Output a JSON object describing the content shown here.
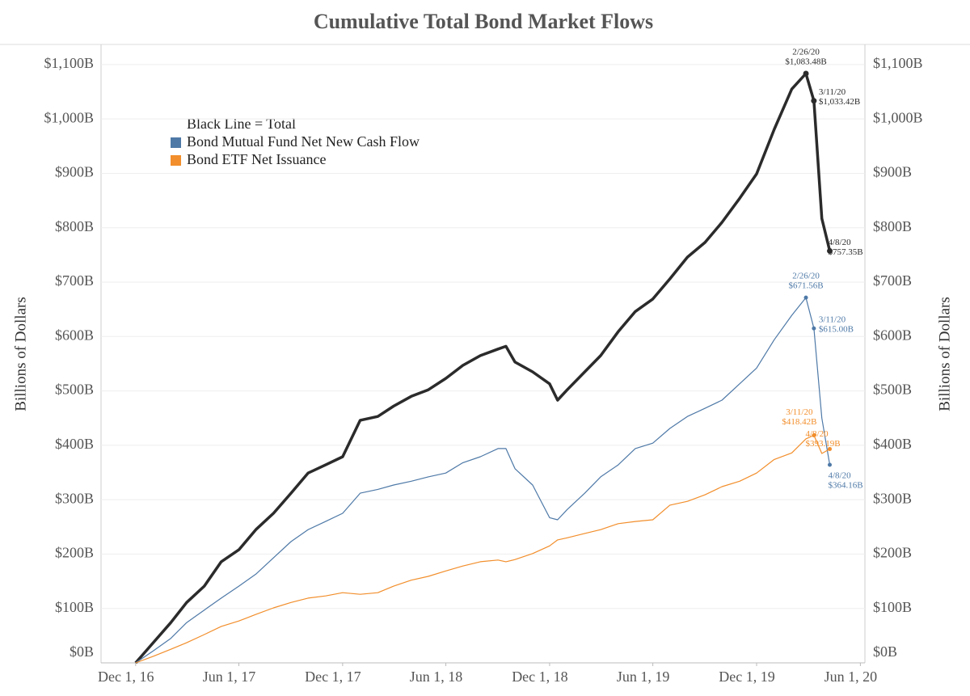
{
  "chart_data": {
    "type": "line",
    "title": "Cumulative Total Bond Market Flows",
    "y_label": "Billions of Dollars",
    "y2_label": "Billions of Dollars",
    "legend_title": "Black Line = Total",
    "legend_position": "upper left",
    "grid": true,
    "xlim": [
      "2016-10-01",
      "2020-06-09"
    ],
    "xticks": [
      {
        "value": "2016-12-01",
        "label": "Dec 1, 16"
      },
      {
        "value": "2017-06-01",
        "label": "Jun 1, 17"
      },
      {
        "value": "2017-12-01",
        "label": "Dec 1, 17"
      },
      {
        "value": "2018-06-01",
        "label": "Jun 1, 18"
      },
      {
        "value": "2018-12-01",
        "label": "Dec 1, 18"
      },
      {
        "value": "2019-06-01",
        "label": "Jun 1, 19"
      },
      {
        "value": "2019-12-01",
        "label": "Dec 1, 19"
      },
      {
        "value": "2020-06-01",
        "label": "Jun 1, 20"
      }
    ],
    "ylim": [
      0,
      1137
    ],
    "yticks": [
      {
        "value": 0,
        "label": "$0B"
      },
      {
        "value": 100,
        "label": "$100B"
      },
      {
        "value": 200,
        "label": "$200B"
      },
      {
        "value": 300,
        "label": "$300B"
      },
      {
        "value": 400,
        "label": "$400B"
      },
      {
        "value": 500,
        "label": "$500B"
      },
      {
        "value": 600,
        "label": "$600B"
      },
      {
        "value": 700,
        "label": "$700B"
      },
      {
        "value": 800,
        "label": "$800B"
      },
      {
        "value": 900,
        "label": "$900B"
      },
      {
        "value": 1000,
        "label": "$1,000B"
      },
      {
        "value": 1100,
        "label": "$1,100B"
      }
    ],
    "y2lim": [
      0,
      1137
    ],
    "y2ticks": [
      {
        "value": 0,
        "label": "$0B"
      },
      {
        "value": 100,
        "label": "$100B"
      },
      {
        "value": 200,
        "label": "$200B"
      },
      {
        "value": 300,
        "label": "$300B"
      },
      {
        "value": 400,
        "label": "$400B"
      },
      {
        "value": 500,
        "label": "$500B"
      },
      {
        "value": 600,
        "label": "$600B"
      },
      {
        "value": 700,
        "label": "$700B"
      },
      {
        "value": 800,
        "label": "$800B"
      },
      {
        "value": 900,
        "label": "$900B"
      },
      {
        "value": 1000,
        "label": "$1,000B"
      },
      {
        "value": 1100,
        "label": "$1,100B"
      }
    ],
    "x": [
      "2016-12-01",
      "2017-01-01",
      "2017-02-01",
      "2017-03-01",
      "2017-04-01",
      "2017-05-01",
      "2017-06-01",
      "2017-07-01",
      "2017-08-01",
      "2017-09-01",
      "2017-10-01",
      "2017-11-01",
      "2017-12-01",
      "2018-01-01",
      "2018-02-01",
      "2018-03-01",
      "2018-04-01",
      "2018-05-01",
      "2018-06-01",
      "2018-07-01",
      "2018-08-01",
      "2018-09-01",
      "2018-09-15",
      "2018-10-01",
      "2018-11-01",
      "2018-12-01",
      "2018-12-15",
      "2019-01-01",
      "2019-02-01",
      "2019-03-01",
      "2019-04-01",
      "2019-05-01",
      "2019-06-01",
      "2019-07-01",
      "2019-08-01",
      "2019-09-01",
      "2019-10-01",
      "2019-11-01",
      "2019-12-01",
      "2020-01-01",
      "2020-02-01",
      "2020-02-26",
      "2020-03-11",
      "2020-03-25",
      "2020-04-08"
    ],
    "point_labels": [
      null,
      null,
      null,
      null,
      null,
      null,
      null,
      null,
      null,
      null,
      null,
      null,
      null,
      null,
      null,
      null,
      null,
      null,
      null,
      null,
      null,
      null,
      null,
      null,
      null,
      null,
      null,
      null,
      null,
      null,
      null,
      null,
      null,
      null,
      null,
      null,
      null,
      null,
      null,
      null,
      null,
      "2/26/20",
      "3/11/20",
      null,
      "4/8/20"
    ],
    "series": [
      {
        "name": "Total",
        "color": "#2b2b2b",
        "width": 3.5,
        "values": [
          0,
          37,
          74,
          111,
          141,
          186,
          208,
          245,
          275,
          312,
          349,
          364,
          379,
          446,
          453,
          472,
          490,
          502,
          523,
          547,
          565,
          577,
          582,
          553,
          535,
          513,
          483,
          502,
          535,
          565,
          609,
          646,
          669,
          706,
          746,
          773,
          810,
          854,
          899,
          981,
          1055,
          1083.48,
          1033.42,
          817,
          757.35
        ],
        "value_labels": [
          null,
          null,
          null,
          null,
          null,
          null,
          null,
          null,
          null,
          null,
          null,
          null,
          null,
          null,
          null,
          null,
          null,
          null,
          null,
          null,
          null,
          null,
          null,
          null,
          null,
          null,
          null,
          null,
          null,
          null,
          null,
          null,
          null,
          null,
          null,
          null,
          null,
          null,
          null,
          null,
          null,
          "$1,083.48B",
          "$1,033.42B",
          null,
          "$757.35B"
        ]
      },
      {
        "name": "Bond Mutual Fund Net New Cash Flow",
        "color": "#4e79a7",
        "width": 1.2,
        "values": [
          0,
          22,
          45,
          74,
          97,
          119,
          141,
          163,
          193,
          223,
          245,
          260,
          275,
          312,
          319,
          327,
          334,
          342,
          349,
          368,
          379,
          394,
          394,
          357,
          327,
          267,
          263,
          282,
          312,
          342,
          364,
          394,
          404,
          431,
          453,
          468,
          483,
          513,
          542,
          594,
          639,
          671.56,
          615,
          450,
          364.16
        ],
        "value_labels": [
          null,
          null,
          null,
          null,
          null,
          null,
          null,
          null,
          null,
          null,
          null,
          null,
          null,
          null,
          null,
          null,
          null,
          null,
          null,
          null,
          null,
          null,
          null,
          null,
          null,
          null,
          null,
          null,
          null,
          null,
          null,
          null,
          null,
          null,
          null,
          null,
          null,
          null,
          null,
          null,
          null,
          "$671.56B",
          "$615.00B",
          null,
          "$364.16B"
        ]
      },
      {
        "name": "Bond ETF Net Issuance",
        "color": "#f28e2b",
        "width": 1.2,
        "values": [
          0,
          12,
          25,
          37,
          52,
          67,
          77,
          89,
          101,
          111,
          119,
          123,
          129,
          126,
          129,
          141,
          152,
          159,
          169,
          178,
          186,
          189,
          186,
          190,
          201,
          215,
          226,
          230,
          238,
          245,
          256,
          260,
          263,
          290,
          297,
          309,
          324,
          334,
          349,
          374,
          386,
          411.92,
          418.42,
          385,
          393.19
        ],
        "value_labels": [
          null,
          null,
          null,
          null,
          null,
          null,
          null,
          null,
          null,
          null,
          null,
          null,
          null,
          null,
          null,
          null,
          null,
          null,
          null,
          null,
          null,
          null,
          null,
          null,
          null,
          null,
          null,
          null,
          null,
          null,
          null,
          null,
          null,
          null,
          null,
          null,
          null,
          null,
          null,
          null,
          null,
          null,
          "$418.42B",
          null,
          "$393.19B"
        ]
      }
    ]
  }
}
